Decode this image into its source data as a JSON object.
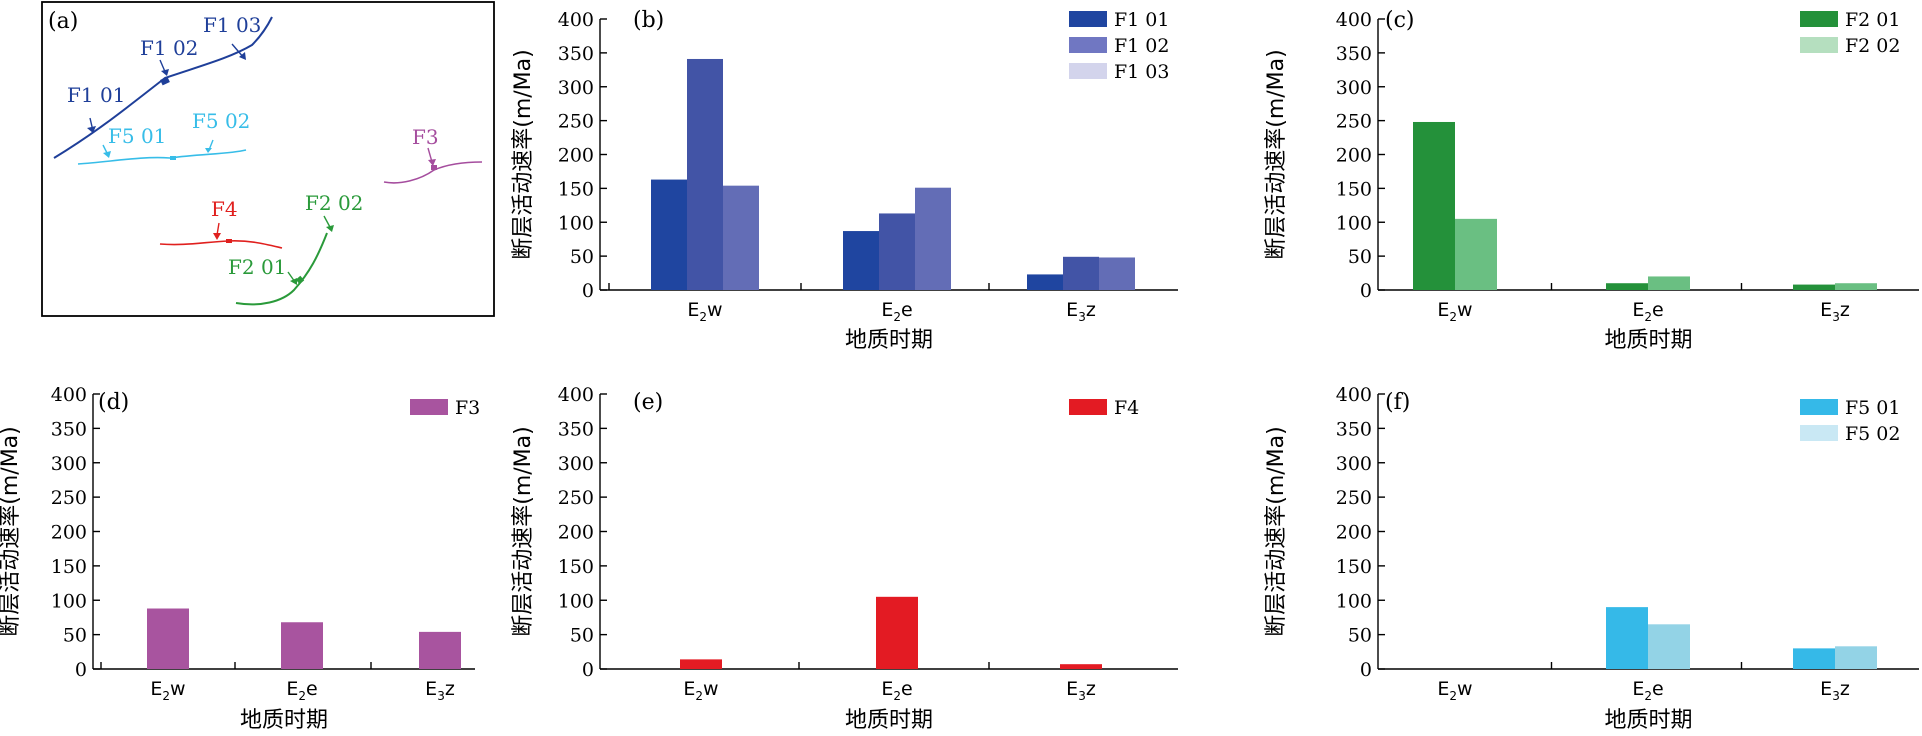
{
  "map": {
    "panel_label": "(a)",
    "labels": {
      "f1_01": "F1 01",
      "f1_02": "F1 02",
      "f1_03": "F1 03",
      "f5_01": "F5 01",
      "f5_02": "F5 02",
      "f3": "F3",
      "f4": "F4",
      "f2_01": "F2 01",
      "f2_02": "F2 02"
    },
    "colors": {
      "F1": "#1f3f99",
      "F5": "#37bde8",
      "F3": "#a54d9e",
      "F4": "#e0201e",
      "F2": "#2a9a3a"
    }
  },
  "chart_data": [
    {
      "panel": "(b)",
      "type": "bar",
      "xlabel": "地质时期",
      "ylabel": "断层活动速率(m/Ma)",
      "ylim": [
        0,
        400
      ],
      "yticks": [
        0,
        50,
        100,
        150,
        200,
        250,
        300,
        350,
        400
      ],
      "categories": [
        {
          "base": "E",
          "sub": "2",
          "suffix": "w"
        },
        {
          "base": "E",
          "sub": "2",
          "suffix": "e"
        },
        {
          "base": "E",
          "sub": "3",
          "suffix": "z"
        }
      ],
      "series": [
        {
          "name": "F1  01",
          "color": "#1f45a0",
          "values": [
            163,
            87,
            23
          ]
        },
        {
          "name": "F1  02",
          "color": "#4254a6",
          "values": [
            341,
            113,
            49
          ]
        },
        {
          "name": "F1  03",
          "color": "#636db6",
          "values": [
            154,
            151,
            48
          ]
        }
      ],
      "legend_colors": [
        "#1f45a0",
        "#7077c2",
        "#d3d4ec"
      ]
    },
    {
      "panel": "(c)",
      "type": "bar",
      "xlabel": "地质时期",
      "ylabel": "断层活动速率(m/Ma)",
      "ylim": [
        0,
        400
      ],
      "yticks": [
        0,
        50,
        100,
        150,
        200,
        250,
        300,
        350,
        400
      ],
      "categories": [
        {
          "base": "E",
          "sub": "2",
          "suffix": "w"
        },
        {
          "base": "E",
          "sub": "2",
          "suffix": "e"
        },
        {
          "base": "E",
          "sub": "3",
          "suffix": "z"
        }
      ],
      "series": [
        {
          "name": "F2  01",
          "color": "#24913a",
          "values": [
            248,
            10,
            8
          ]
        },
        {
          "name": "F2  02",
          "color": "#6abf82",
          "values": [
            105,
            20,
            10
          ]
        }
      ],
      "legend_colors": [
        "#24913a",
        "#b5dfbf"
      ]
    },
    {
      "panel": "(d)",
      "type": "bar",
      "xlabel": "地质时期",
      "ylabel": "断层活动速率(m/Ma)",
      "ylim": [
        0,
        400
      ],
      "yticks": [
        0,
        50,
        100,
        150,
        200,
        250,
        300,
        350,
        400
      ],
      "categories": [
        {
          "base": "E",
          "sub": "2",
          "suffix": "w"
        },
        {
          "base": "E",
          "sub": "2",
          "suffix": "e"
        },
        {
          "base": "E",
          "sub": "3",
          "suffix": "z"
        }
      ],
      "series": [
        {
          "name": "F3",
          "color": "#a8549f",
          "values": [
            88,
            68,
            54
          ]
        }
      ],
      "legend_colors": [
        "#a8549f"
      ]
    },
    {
      "panel": "(e)",
      "type": "bar",
      "xlabel": "地质时期",
      "ylabel": "断层活动速率(m/Ma)",
      "ylim": [
        0,
        400
      ],
      "yticks": [
        0,
        50,
        100,
        150,
        200,
        250,
        300,
        350,
        400
      ],
      "categories": [
        {
          "base": "E",
          "sub": "2",
          "suffix": "w"
        },
        {
          "base": "E",
          "sub": "2",
          "suffix": "e"
        },
        {
          "base": "E",
          "sub": "3",
          "suffix": "z"
        }
      ],
      "series": [
        {
          "name": "F4",
          "color": "#e31b23",
          "values": [
            14,
            105,
            7
          ]
        }
      ],
      "legend_colors": [
        "#e31b23"
      ]
    },
    {
      "panel": "(f)",
      "type": "bar",
      "xlabel": "地质时期",
      "ylabel": "断层活动速率(m/Ma)",
      "ylim": [
        0,
        400
      ],
      "yticks": [
        0,
        50,
        100,
        150,
        200,
        250,
        300,
        350,
        400
      ],
      "categories": [
        {
          "base": "E",
          "sub": "2",
          "suffix": "w"
        },
        {
          "base": "E",
          "sub": "2",
          "suffix": "e"
        },
        {
          "base": "E",
          "sub": "3",
          "suffix": "z"
        }
      ],
      "series": [
        {
          "name": "F5  01",
          "color": "#35b9e8",
          "values": [
            0,
            90,
            30
          ]
        },
        {
          "name": "F5  02",
          "color": "#93d3e6",
          "values": [
            0,
            65,
            33
          ]
        }
      ],
      "legend_colors": [
        "#35b9e8",
        "#c9e8f4"
      ]
    }
  ]
}
